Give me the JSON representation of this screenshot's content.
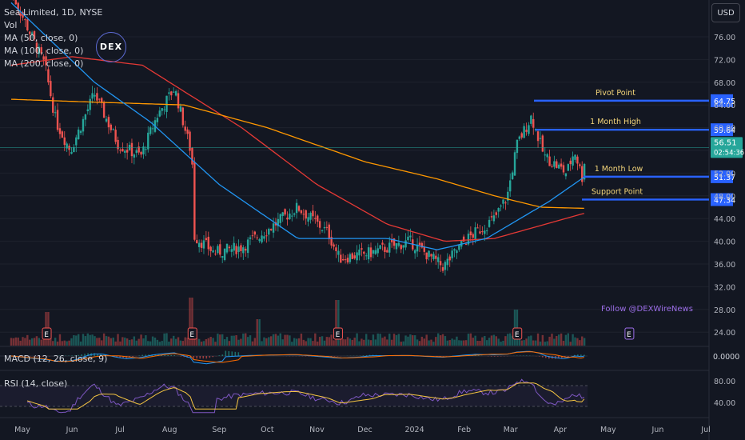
{
  "header": {
    "symbol_line": "Sea Limited, 1D, NYSE",
    "vol_label": "Vol",
    "ma_labels": [
      "MA (50, close, 0)",
      "MA (100, close, 0)",
      "MA (200, close, 0)"
    ],
    "currency_button": "USD",
    "logo_text": "DEX"
  },
  "watermark": "Follow @DEXWireNews",
  "colors": {
    "background": "#131722",
    "up": "#26a69a",
    "down": "#ef5350",
    "level_line": "#2962ff",
    "ma50": "#2196f3",
    "ma100": "#ff9800",
    "ma200": "#e53935",
    "current_price_tag": "#26a69a",
    "annotation_text": "#f5d67a",
    "event_icon": "#9c6ee8",
    "rsi_line": "#7e57c2",
    "rsi_ma": "#f5c542",
    "macd_line": "#2196f3",
    "signal_line": "#ff6d00"
  },
  "y_axis": {
    "ticks": [
      "76.00",
      "72.00",
      "68.00",
      "64.00",
      "60.00",
      "56.00",
      "52.00",
      "48.00",
      "44.00",
      "40.00",
      "36.00",
      "32.00",
      "28.00",
      "24.00"
    ]
  },
  "levels": [
    {
      "name": "Pivot Point",
      "price_label": "64.75"
    },
    {
      "name": "1 Month High",
      "price_label": "59.64"
    },
    {
      "name": "1 Month Low",
      "price_label": "51.37"
    },
    {
      "name": "Support Point",
      "price_label": "47.34"
    }
  ],
  "current_price": {
    "price": "56.51",
    "countdown": "02:54:36"
  },
  "x_axis": {
    "labels": [
      "May",
      "Jun",
      "Jul",
      "Aug",
      "Sep",
      "Oct",
      "Nov",
      "Dec",
      "2024",
      "Feb",
      "Mar",
      "Apr",
      "May",
      "Jun",
      "Jul"
    ]
  },
  "event_markers": [
    "E",
    "E",
    "E",
    "E",
    "E"
  ],
  "macd": {
    "label": "MACD (12, 26, close, 9)",
    "value": "0.0000"
  },
  "rsi": {
    "label": "RSI (14, close)",
    "ticks": [
      "80.00",
      "40.00"
    ]
  },
  "chart_data": {
    "type": "candlestick",
    "symbol": "Sea Limited",
    "interval": "1D",
    "exchange": "NYSE",
    "ylim": [
      22,
      80
    ],
    "price_path_keypoints": [
      {
        "date": "2023-04-24",
        "close": 84.0
      },
      {
        "date": "2023-05-15",
        "close": 71.0
      },
      {
        "date": "2023-05-22",
        "close": 61.0
      },
      {
        "date": "2023-05-31",
        "close": 56.0
      },
      {
        "date": "2023-06-15",
        "close": 66.0
      },
      {
        "date": "2023-06-30",
        "close": 57.0
      },
      {
        "date": "2023-07-14",
        "close": 55.0
      },
      {
        "date": "2023-07-24",
        "close": 62.0
      },
      {
        "date": "2023-08-04",
        "close": 67.0
      },
      {
        "date": "2023-08-15",
        "close": 55.0
      },
      {
        "date": "2023-08-16",
        "close": 41.0
      },
      {
        "date": "2023-08-29",
        "close": 38.0
      },
      {
        "date": "2023-09-15",
        "close": 39.0
      },
      {
        "date": "2023-10-01",
        "close": 42.0
      },
      {
        "date": "2023-10-20",
        "close": 46.0
      },
      {
        "date": "2023-11-08",
        "close": 41.5
      },
      {
        "date": "2023-11-15",
        "close": 37.0
      },
      {
        "date": "2023-12-05",
        "close": 38.0
      },
      {
        "date": "2023-12-29",
        "close": 40.0
      },
      {
        "date": "2024-01-19",
        "close": 35.5
      },
      {
        "date": "2024-02-01",
        "close": 40.0
      },
      {
        "date": "2024-02-20",
        "close": 44.0
      },
      {
        "date": "2024-02-28",
        "close": 48.0
      },
      {
        "date": "2024-03-05",
        "close": 57.0
      },
      {
        "date": "2024-03-14",
        "close": 62.0
      },
      {
        "date": "2024-03-22",
        "close": 55.0
      },
      {
        "date": "2024-04-05",
        "close": 52.0
      },
      {
        "date": "2024-04-10",
        "close": 56.0
      },
      {
        "date": "2024-04-15",
        "close": 51.0
      },
      {
        "date": "2024-04-17",
        "close": 56.51
      }
    ],
    "ma50_keypoints": [
      {
        "date": "2023-04-24",
        "value": 82.0
      },
      {
        "date": "2023-06-15",
        "value": 68.0
      },
      {
        "date": "2023-07-20",
        "value": 61.0
      },
      {
        "date": "2023-09-01",
        "value": 50.0
      },
      {
        "date": "2023-10-20",
        "value": 40.5
      },
      {
        "date": "2023-12-15",
        "value": 40.5
      },
      {
        "date": "2024-01-15",
        "value": 38.5
      },
      {
        "date": "2024-02-15",
        "value": 40.5
      },
      {
        "date": "2024-03-25",
        "value": 47.0
      },
      {
        "date": "2024-04-17",
        "value": 51.5
      }
    ],
    "ma100_keypoints": [
      {
        "date": "2023-04-24",
        "value": 65.0
      },
      {
        "date": "2023-06-15",
        "value": 64.5
      },
      {
        "date": "2023-08-10",
        "value": 64.0
      },
      {
        "date": "2023-10-01",
        "value": 60.0
      },
      {
        "date": "2023-12-01",
        "value": 54.0
      },
      {
        "date": "2024-01-15",
        "value": 51.0
      },
      {
        "date": "2024-02-20",
        "value": 48.0
      },
      {
        "date": "2024-03-20",
        "value": 46.0
      },
      {
        "date": "2024-04-17",
        "value": 45.8
      }
    ],
    "ma200_keypoints": [
      {
        "date": "2023-04-24",
        "value": 71.0
      },
      {
        "date": "2023-06-01",
        "value": 72.5
      },
      {
        "date": "2023-07-15",
        "value": 71.0
      },
      {
        "date": "2023-09-15",
        "value": 60.0
      },
      {
        "date": "2023-11-01",
        "value": 50.0
      },
      {
        "date": "2023-12-15",
        "value": 43.0
      },
      {
        "date": "2024-01-20",
        "value": 40.0
      },
      {
        "date": "2024-02-20",
        "value": 40.5
      },
      {
        "date": "2024-04-17",
        "value": 45.0
      }
    ],
    "levels": [
      {
        "name": "Pivot Point",
        "value": 64.75
      },
      {
        "name": "1 Month High",
        "value": 59.64
      },
      {
        "name": "1 Month Low",
        "value": 51.37
      },
      {
        "name": "Support Point",
        "value": 47.34
      }
    ],
    "volume_spikes": [
      {
        "date": "2023-05-16",
        "relative": 0.7
      },
      {
        "date": "2023-08-15",
        "relative": 1.0
      },
      {
        "date": "2023-09-25",
        "relative": 0.55
      },
      {
        "date": "2023-11-14",
        "relative": 0.95
      },
      {
        "date": "2024-03-05",
        "relative": 0.75
      }
    ],
    "earnings_dates": [
      "2023-05-16",
      "2023-08-15",
      "2023-11-14",
      "2024-03-05",
      "2024-05-14"
    ]
  }
}
